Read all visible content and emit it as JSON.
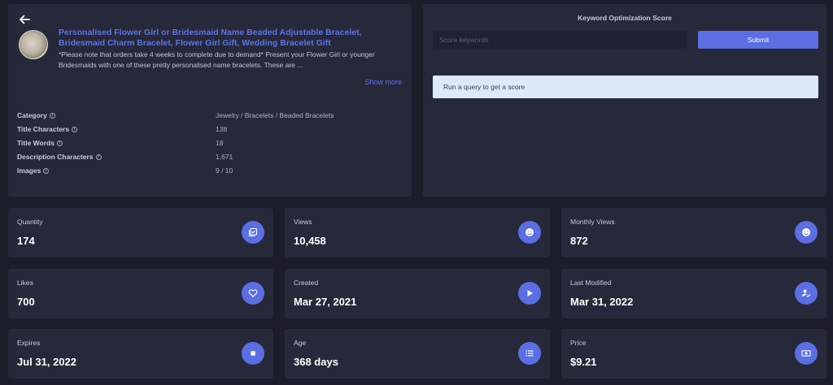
{
  "listing": {
    "title": "Personalised Flower Girl or Bridesmaid Name Beaded Adjustable Bracelet, Bridesmaid Charm Bracelet, Flower Girl Gift, Wedding Bracelet Gift",
    "description": "*Please note that orders take 4 weeks to complete due to demand* Present your Flower Girl or younger Bridesmaids with one of these pretty personalised name bracelets. These are ...",
    "show_more": "Show more",
    "attributes": [
      {
        "label": "Category",
        "value": "Jewelry / Bracelets / Beaded Bracelets"
      },
      {
        "label": "Title Characters",
        "value": "138"
      },
      {
        "label": "Title Words",
        "value": "18"
      },
      {
        "label": "Description Characters",
        "value": "1,671"
      },
      {
        "label": "Images",
        "value": "9 / 10"
      }
    ]
  },
  "keyword": {
    "title": "Keyword Optimization Score",
    "placeholder": "Score keywords",
    "submit_label": "Submit",
    "result": "Run a query to get a score"
  },
  "stats": [
    {
      "label": "Quantity",
      "value": "174",
      "icon": "checklist-icon"
    },
    {
      "label": "Views",
      "value": "10,458",
      "icon": "smile-icon"
    },
    {
      "label": "Monthly Views",
      "value": "872",
      "icon": "smile-icon"
    },
    {
      "label": "Likes",
      "value": "700",
      "icon": "heart-icon"
    },
    {
      "label": "Created",
      "value": "Mar 27, 2021",
      "icon": "play-icon"
    },
    {
      "label": "Last Modified",
      "value": "Mar 31, 2022",
      "icon": "user-check-icon"
    },
    {
      "label": "Expires",
      "value": "Jul 31, 2022",
      "icon": "stop-icon"
    },
    {
      "label": "Age",
      "value": "368 days",
      "icon": "list-icon"
    },
    {
      "label": "Price",
      "value": "$9.21",
      "icon": "cash-icon"
    }
  ],
  "colors": {
    "background": "#1b1d2b",
    "panel": "#262939",
    "accent": "#5b6ee3",
    "link": "#5b74ea"
  }
}
